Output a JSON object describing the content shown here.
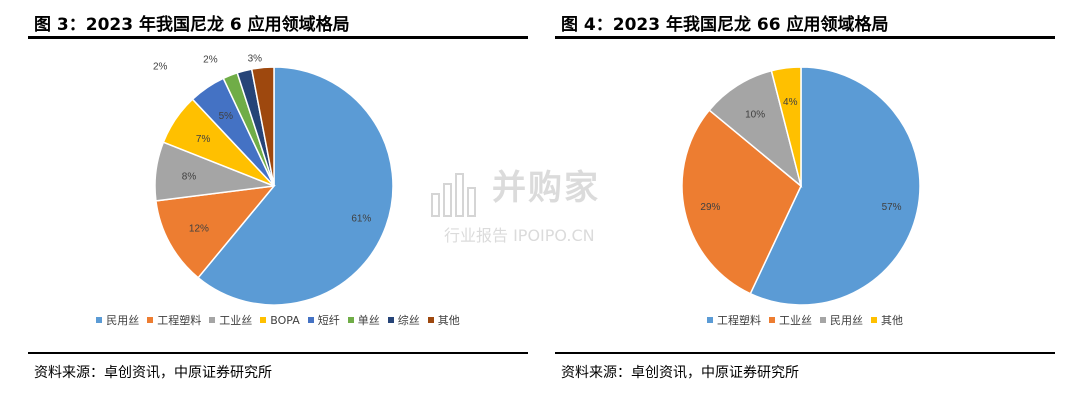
{
  "chart_data": [
    {
      "type": "pie",
      "title": "图 3：2023 年我国尼龙 6 应用领域格局",
      "categories": [
        "民用丝",
        "工程塑料",
        "工业丝",
        "BOPA",
        "短纤",
        "单丝",
        "综丝",
        "其他"
      ],
      "values": [
        61,
        12,
        8,
        7,
        5,
        2,
        2,
        3
      ],
      "labels": [
        "61%",
        "12%",
        "8%",
        "7%",
        "5%",
        "2%",
        "2%",
        "3%"
      ],
      "colors": [
        "#5B9BD5",
        "#ED7D31",
        "#A5A5A5",
        "#FFC000",
        "#4472C4",
        "#70AD47",
        "#264478",
        "#9E480E"
      ],
      "legend_position": "bottom",
      "source": "资料来源：卓创资讯，中原证券研究所"
    },
    {
      "type": "pie",
      "title": "图 4：2023 年我国尼龙 66 应用领域格局",
      "categories": [
        "工程塑料",
        "工业丝",
        "民用丝",
        "其他"
      ],
      "values": [
        57,
        29,
        10,
        4
      ],
      "labels": [
        "57%",
        "29%",
        "10%",
        "4%"
      ],
      "colors": [
        "#5B9BD5",
        "#ED7D31",
        "#A5A5A5",
        "#FFC000"
      ],
      "legend_position": "bottom",
      "source": "资料来源：卓创资讯，中原证券研究所"
    }
  ],
  "watermark": {
    "main": "并购家",
    "sub": "行业报告 IPOIPO.CN"
  }
}
